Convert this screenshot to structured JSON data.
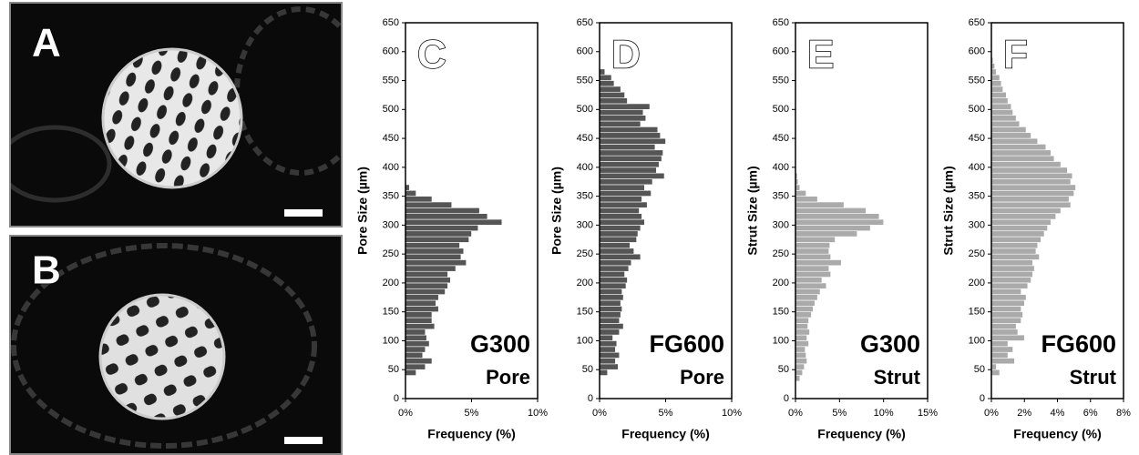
{
  "images": [
    {
      "label": "A"
    },
    {
      "label": "B"
    }
  ],
  "chart_data": [
    {
      "type": "histogram",
      "orientation": "horizontal",
      "panel": "C",
      "annotation": "G300",
      "subannotation": "Pore",
      "ylabel": "Pore Size (µm)",
      "xlabel": "Frequency (%)",
      "color": "#555555",
      "xlim": [
        0,
        10
      ],
      "xticks": [
        {
          "value": 0,
          "label": "0%"
        },
        {
          "value": 5,
          "label": "5%"
        },
        {
          "value": 10,
          "label": "10%"
        }
      ],
      "ylim": [
        0,
        650
      ],
      "yticks": [
        0,
        50,
        100,
        150,
        200,
        250,
        300,
        350,
        400,
        450,
        500,
        550,
        600,
        650
      ],
      "bins": [
        40,
        50,
        60,
        70,
        80,
        90,
        100,
        110,
        120,
        130,
        140,
        150,
        160,
        170,
        180,
        190,
        200,
        210,
        220,
        230,
        240,
        250,
        260,
        270,
        280,
        290,
        300,
        310,
        320,
        330,
        340,
        350,
        360,
        370
      ],
      "values": [
        0.8,
        1.5,
        2.0,
        1.3,
        1.5,
        1.8,
        1.6,
        1.5,
        2.2,
        2.0,
        2.0,
        2.5,
        2.3,
        2.5,
        3.0,
        3.2,
        3.4,
        3.2,
        3.8,
        4.6,
        4.2,
        4.4,
        4.1,
        4.8,
        5.0,
        5.5,
        7.3,
        6.2,
        5.6,
        3.5,
        2.0,
        0.8,
        0.3
      ]
    },
    {
      "type": "histogram",
      "orientation": "horizontal",
      "panel": "D",
      "annotation": "FG600",
      "subannotation": "Pore",
      "ylabel": "Pore Size (µm)",
      "xlabel": "Frequency (%)",
      "color": "#555555",
      "xlim": [
        0,
        10
      ],
      "xticks": [
        {
          "value": 0,
          "label": "0%"
        },
        {
          "value": 5,
          "label": "5%"
        },
        {
          "value": 10,
          "label": "10%"
        }
      ],
      "ylim": [
        0,
        650
      ],
      "yticks": [
        0,
        50,
        100,
        150,
        200,
        250,
        300,
        350,
        400,
        450,
        500,
        550,
        600,
        650
      ],
      "bins": [
        40,
        50,
        60,
        70,
        80,
        90,
        100,
        110,
        120,
        130,
        140,
        150,
        160,
        170,
        180,
        190,
        200,
        210,
        220,
        230,
        240,
        250,
        260,
        270,
        280,
        290,
        300,
        310,
        320,
        330,
        340,
        350,
        360,
        370,
        380,
        390,
        400,
        410,
        420,
        430,
        440,
        450,
        460,
        470,
        480,
        490,
        500,
        510,
        520,
        530,
        540,
        550,
        560,
        570
      ],
      "values": [
        0.6,
        1.4,
        1.2,
        1.5,
        1.2,
        1.3,
        1.0,
        1.5,
        1.8,
        1.5,
        1.6,
        1.7,
        1.6,
        1.8,
        1.7,
        2.0,
        2.1,
        1.9,
        2.2,
        2.4,
        3.1,
        2.6,
        2.3,
        2.8,
        2.9,
        3.1,
        3.4,
        3.2,
        3.0,
        3.6,
        3.2,
        3.9,
        3.4,
        4.0,
        4.9,
        4.3,
        4.5,
        4.7,
        4.8,
        4.2,
        5.0,
        4.6,
        4.4,
        3.1,
        3.5,
        3.3,
        3.8,
        2.1,
        1.9,
        1.6,
        1.1,
        0.9,
        0.4
      ]
    },
    {
      "type": "histogram",
      "orientation": "horizontal",
      "panel": "E",
      "annotation": "G300",
      "subannotation": "Strut",
      "ylabel": "Strut Size (µm)",
      "xlabel": "Frequency (%)",
      "color": "#aaaaaa",
      "xlim": [
        0,
        15
      ],
      "xticks": [
        {
          "value": 0,
          "label": "0%"
        },
        {
          "value": 5,
          "label": "5%"
        },
        {
          "value": 10,
          "label": "10%"
        },
        {
          "value": 15,
          "label": "15%"
        }
      ],
      "ylim": [
        0,
        650
      ],
      "yticks": [
        0,
        50,
        100,
        150,
        200,
        250,
        300,
        350,
        400,
        450,
        500,
        550,
        600,
        650
      ],
      "bins": [
        30,
        40,
        50,
        60,
        70,
        80,
        90,
        100,
        110,
        120,
        130,
        140,
        150,
        160,
        170,
        180,
        190,
        200,
        210,
        220,
        230,
        240,
        250,
        260,
        270,
        280,
        290,
        300,
        310,
        320,
        330,
        340,
        350,
        360,
        370,
        380,
        390
      ],
      "values": [
        0.5,
        0.8,
        1.0,
        1.3,
        1.2,
        1.1,
        1.5,
        1.3,
        1.6,
        1.4,
        1.5,
        1.8,
        2.0,
        2.2,
        2.5,
        2.8,
        3.5,
        3.0,
        4.0,
        3.8,
        5.2,
        4.0,
        3.8,
        3.9,
        4.5,
        7.0,
        8.5,
        10.0,
        9.5,
        8.0,
        5.5,
        2.5,
        1.2,
        0.5,
        0.3,
        0.2
      ]
    },
    {
      "type": "histogram",
      "orientation": "horizontal",
      "panel": "F",
      "annotation": "FG600",
      "subannotation": "Strut",
      "ylabel": "Strut Size (µm)",
      "xlabel": "Frequency (%)",
      "color": "#aaaaaa",
      "xlim": [
        0,
        8
      ],
      "xticks": [
        {
          "value": 0,
          "label": "0%"
        },
        {
          "value": 2,
          "label": "2%"
        },
        {
          "value": 4,
          "label": "4%"
        },
        {
          "value": 6,
          "label": "6%"
        },
        {
          "value": 8,
          "label": "8%"
        }
      ],
      "ylim": [
        0,
        650
      ],
      "yticks": [
        0,
        50,
        100,
        150,
        200,
        250,
        300,
        350,
        400,
        450,
        500,
        550,
        600,
        650
      ],
      "bins": [
        40,
        50,
        60,
        70,
        80,
        90,
        100,
        110,
        120,
        130,
        140,
        150,
        160,
        170,
        180,
        190,
        200,
        210,
        220,
        230,
        240,
        250,
        260,
        270,
        280,
        290,
        300,
        310,
        320,
        330,
        340,
        350,
        360,
        370,
        380,
        390,
        400,
        410,
        420,
        430,
        440,
        450,
        460,
        470,
        480,
        490,
        500,
        510,
        520,
        530,
        540,
        550,
        560,
        570,
        580,
        590
      ],
      "values": [
        0.5,
        0.3,
        1.4,
        1.0,
        1.3,
        1.0,
        2.0,
        1.6,
        1.5,
        1.8,
        1.9,
        1.8,
        2.0,
        2.1,
        1.8,
        2.2,
        2.4,
        2.5,
        2.6,
        2.5,
        2.9,
        2.7,
        2.8,
        3.0,
        3.2,
        3.4,
        3.6,
        3.9,
        4.2,
        4.8,
        4.7,
        5.0,
        5.1,
        4.8,
        4.9,
        4.6,
        4.2,
        3.8,
        3.6,
        3.3,
        2.8,
        2.4,
        2.1,
        1.7,
        1.5,
        1.3,
        1.2,
        1.0,
        0.9,
        0.7,
        0.6,
        0.5,
        0.3,
        0.2,
        0.1
      ]
    }
  ]
}
